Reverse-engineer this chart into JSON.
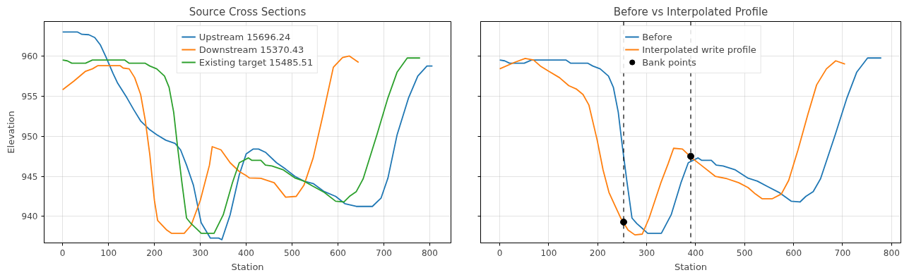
{
  "chart_data": [
    {
      "type": "line",
      "title": "Source Cross Sections",
      "xlabel": "Station",
      "ylabel": "Elevation",
      "xlim": [
        -40.3,
        846.3
      ],
      "ylim": [
        936.7,
        964.3
      ],
      "xticks": [
        0,
        100,
        200,
        300,
        400,
        500,
        600,
        700,
        800
      ],
      "yticks": [
        940,
        945,
        950,
        955,
        960
      ],
      "grid": true,
      "legend": "top",
      "line_style": "solid",
      "marker": "none",
      "series": [
        {
          "name": "Upstream 15696.24",
          "color": "#1f77b4",
          "x": [
            0,
            32,
            42,
            57,
            70,
            82,
            95,
            110,
            120,
            140,
            155,
            170,
            190,
            205,
            225,
            245,
            257,
            270,
            285,
            302,
            322,
            340,
            347,
            365,
            385,
            400,
            415,
            427,
            442,
            466,
            486,
            506,
            526,
            546,
            570,
            595,
            615,
            640,
            675,
            694,
            709,
            729,
            754,
            774,
            794,
            806
          ],
          "values": [
            963.0,
            963.0,
            962.7,
            962.65,
            962.3,
            961.4,
            959.8,
            957.8,
            956.6,
            954.8,
            953.3,
            951.9,
            950.8,
            950.2,
            949.5,
            949.1,
            948.3,
            946.4,
            943.9,
            939.2,
            937.3,
            937.3,
            937.1,
            940.2,
            945.2,
            947.8,
            948.4,
            948.4,
            948.0,
            946.7,
            945.9,
            945.0,
            944.4,
            944.1,
            943.1,
            942.5,
            941.6,
            941.25,
            941.25,
            942.3,
            944.8,
            950.2,
            954.8,
            957.5,
            958.75,
            958.75
          ]
        },
        {
          "name": "Downstream 15370.43",
          "color": "#ff7f0e",
          "x": [
            0,
            25,
            50,
            65,
            77,
            125,
            132,
            145,
            157,
            170,
            180,
            190,
            200,
            207,
            227,
            237,
            265,
            280,
            300,
            320,
            326,
            345,
            365,
            385,
            400,
            407,
            432,
            461,
            486,
            509,
            526,
            546,
            566,
            590,
            610,
            625,
            645
          ],
          "values": [
            955.8,
            956.9,
            958.1,
            958.4,
            958.8,
            958.8,
            958.5,
            958.4,
            957.3,
            955.2,
            952.0,
            947.7,
            942.0,
            939.5,
            938.3,
            937.9,
            937.9,
            938.9,
            942.0,
            946.4,
            948.7,
            948.3,
            946.7,
            945.6,
            945.1,
            944.8,
            944.75,
            944.2,
            942.4,
            942.5,
            943.9,
            947.3,
            952.3,
            958.6,
            959.8,
            960.0,
            959.2
          ]
        },
        {
          "name": "Existing target 15485.51",
          "color": "#2ca02c",
          "x": [
            0,
            10,
            20,
            50,
            65,
            135,
            145,
            180,
            190,
            205,
            222,
            232,
            242,
            250,
            260,
            270,
            280,
            295,
            302,
            330,
            350,
            370,
            385,
            405,
            412,
            432,
            442,
            456,
            481,
            506,
            526,
            546,
            570,
            595,
            613,
            625,
            640,
            655,
            685,
            709,
            729,
            751,
            779
          ],
          "values": [
            959.5,
            959.4,
            959.1,
            959.1,
            959.5,
            959.5,
            959.1,
            959.1,
            958.75,
            958.4,
            957.5,
            956.1,
            953.0,
            948.9,
            944.2,
            939.8,
            939.1,
            938.3,
            937.9,
            937.9,
            940.2,
            944.2,
            946.7,
            947.3,
            947.0,
            947.0,
            946.4,
            946.3,
            945.8,
            944.8,
            944.4,
            943.75,
            943.0,
            941.9,
            941.8,
            942.5,
            943.1,
            944.7,
            950.2,
            954.8,
            958.0,
            959.75,
            959.75
          ]
        }
      ]
    },
    {
      "type": "line",
      "title": "Before vs Interpolated Profile",
      "xlabel": "Station",
      "xlim": [
        -39,
        819
      ],
      "ylim": [
        936.7,
        964.3
      ],
      "xticks": [
        0,
        100,
        200,
        300,
        400,
        500,
        600,
        700,
        800
      ],
      "yticks": [
        940,
        945,
        950,
        955,
        960
      ],
      "tick_labels": "x",
      "grid": true,
      "legend": "top",
      "line_style": "solid",
      "marker": "none",
      "ref_lines": [
        {
          "axis": "x",
          "value": 253,
          "color": "#000000",
          "line_style": "dashed"
        },
        {
          "axis": "x",
          "value": 390,
          "color": "#000000",
          "line_style": "dashed"
        }
      ],
      "series": [
        {
          "name": "Before",
          "color": "#1f77b4",
          "x": [
            0,
            10,
            20,
            50,
            65,
            135,
            145,
            180,
            190,
            205,
            222,
            232,
            242,
            250,
            260,
            270,
            280,
            295,
            302,
            330,
            350,
            370,
            385,
            405,
            412,
            432,
            442,
            456,
            481,
            506,
            526,
            546,
            570,
            595,
            613,
            625,
            640,
            655,
            685,
            709,
            729,
            751,
            779
          ],
          "values": [
            959.5,
            959.4,
            959.1,
            959.1,
            959.5,
            959.5,
            959.1,
            959.1,
            958.75,
            958.4,
            957.5,
            956.1,
            953.0,
            948.9,
            944.2,
            939.8,
            939.1,
            938.3,
            937.9,
            937.9,
            940.2,
            944.2,
            946.7,
            947.3,
            947.0,
            947.0,
            946.4,
            946.3,
            945.8,
            944.8,
            944.4,
            943.75,
            943.0,
            941.9,
            941.8,
            942.5,
            943.1,
            944.7,
            950.2,
            954.8,
            958.0,
            959.75,
            959.75
          ]
        },
        {
          "name": "Interpolated write profile",
          "color": "#ff7f0e",
          "x": [
            0,
            30,
            52,
            69,
            83,
            100,
            122,
            141,
            156,
            170,
            182,
            199,
            211,
            223,
            235,
            247,
            262,
            276,
            291,
            305,
            329,
            344,
            355,
            373,
            392,
            411,
            440,
            464,
            488,
            507,
            522,
            536,
            556,
            575,
            590,
            609,
            629,
            647,
            667,
            686,
            705
          ],
          "values": [
            958.4,
            959.2,
            959.7,
            959.5,
            958.75,
            958.1,
            957.3,
            956.3,
            955.9,
            955.2,
            953.9,
            949.5,
            945.8,
            943.0,
            941.4,
            939.8,
            938.3,
            937.7,
            937.8,
            939.8,
            944.2,
            946.6,
            948.5,
            948.4,
            947.3,
            946.4,
            945.0,
            944.7,
            944.2,
            943.6,
            942.8,
            942.2,
            942.2,
            942.8,
            944.5,
            948.3,
            952.7,
            956.4,
            958.4,
            959.4,
            959.0
          ]
        },
        {
          "name": "Bank points",
          "type": "scatter",
          "marker": "circle",
          "color": "#000000",
          "x": [
            253,
            390
          ],
          "values": [
            939.3,
            947.5
          ]
        }
      ]
    }
  ]
}
